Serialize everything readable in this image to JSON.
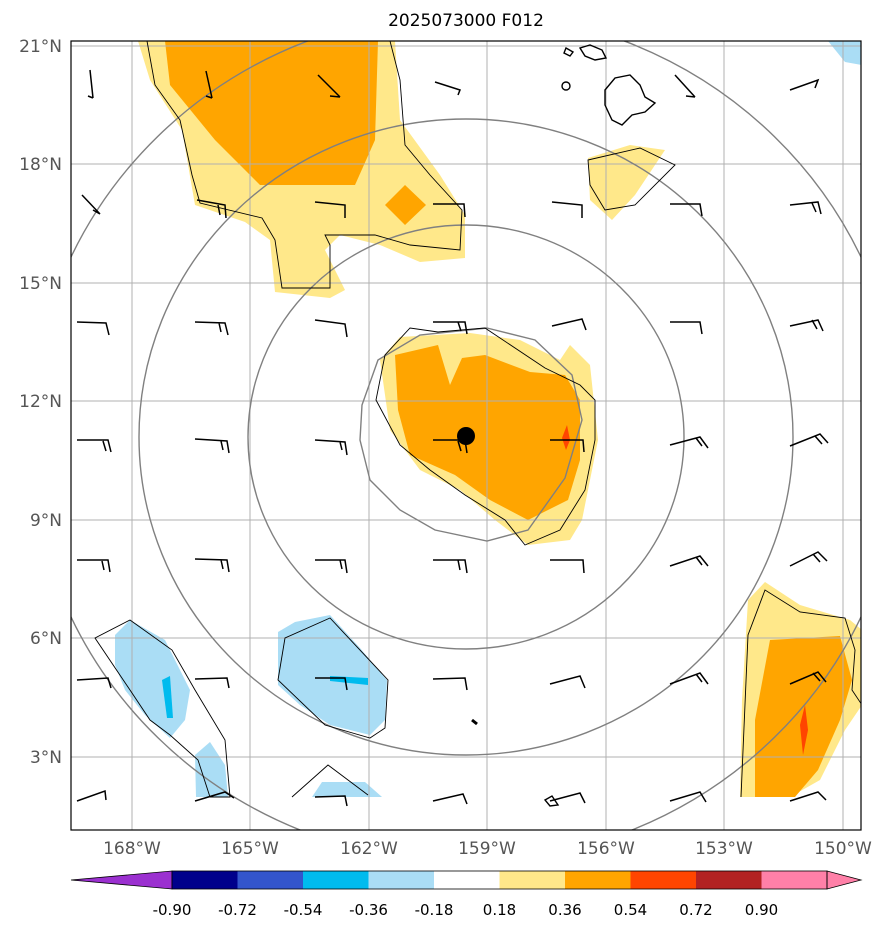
{
  "title": "2025073000 F012",
  "map": {
    "lon_range": [
      -169.5,
      -149.5
    ],
    "lat_range": [
      1,
      21.2
    ],
    "lon_ticks": [
      {
        "value": -168,
        "label": "168°W"
      },
      {
        "value": -165,
        "label": "165°W"
      },
      {
        "value": -162,
        "label": "162°W"
      },
      {
        "value": -159,
        "label": "159°W"
      },
      {
        "value": -156,
        "label": "156°W"
      },
      {
        "value": -153,
        "label": "153°W"
      },
      {
        "value": -150,
        "label": "150°W"
      }
    ],
    "lat_ticks": [
      {
        "value": 3,
        "label": "3°N"
      },
      {
        "value": 6,
        "label": "6°N"
      },
      {
        "value": 9,
        "label": "9°N"
      },
      {
        "value": 12,
        "label": "12°N"
      },
      {
        "value": 15,
        "label": "15°N"
      },
      {
        "value": 18,
        "label": "18°N"
      },
      {
        "value": 21,
        "label": "21°N"
      }
    ],
    "grid": true,
    "center_marker": {
      "lon": -159.5,
      "lat": 11.1
    },
    "range_rings_deg": [
      2.75,
      5.5,
      8.25,
      11
    ],
    "colors": {
      "land": "#000000",
      "grid": "#b0b0b0",
      "rings": "#808080",
      "barbs": "#000000"
    }
  },
  "colorbar": {
    "levels": [
      "-0.90",
      "-0.72",
      "-0.54",
      "-0.36",
      "-0.18",
      "0.18",
      "0.36",
      "0.54",
      "0.72",
      "0.90"
    ],
    "colors": [
      "#9b30d0",
      "#00008b",
      "#3355cc",
      "#00bbee",
      "#aaddf5",
      "#ffffff",
      "#ffe88a",
      "#ffa500",
      "#ff4500",
      "#b22222",
      "#ff80a8"
    ]
  }
}
